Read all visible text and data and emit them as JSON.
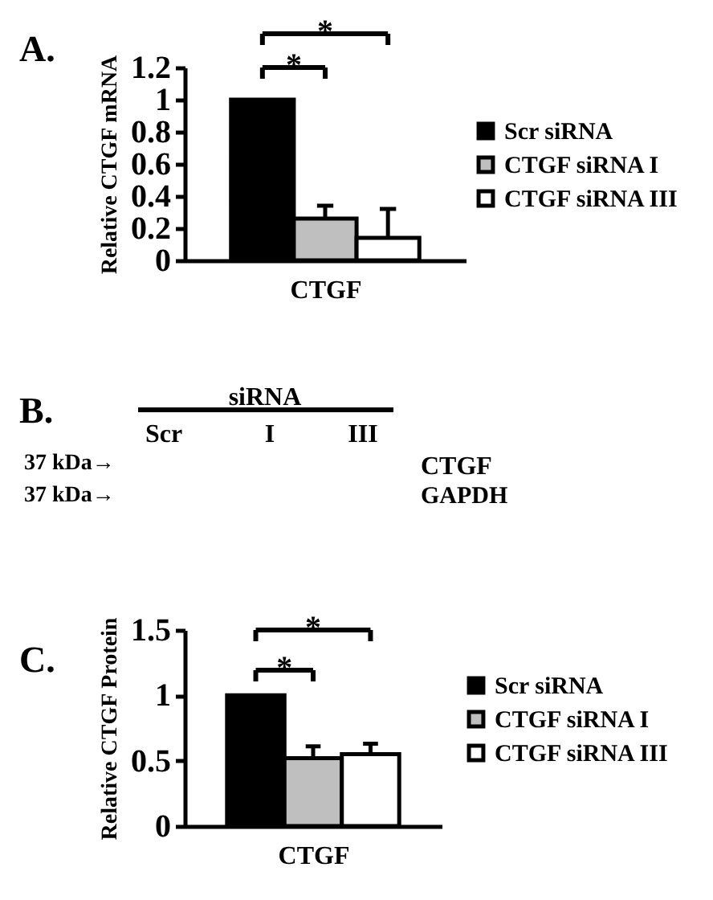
{
  "chart_data": [
    {
      "type": "bar",
      "title": "A.",
      "ylabel": "Relative CTGF mRNA",
      "categories": [
        "CTGF"
      ],
      "series": [
        {
          "name": "Scr siRNA",
          "color": "#000000",
          "values": [
            1
          ]
        },
        {
          "name": "CTGF siRNA I",
          "color": "#bfbfbf",
          "values": [
            0.26
          ],
          "errors": [
            [
              0.26,
              0.34
            ]
          ]
        },
        {
          "name": "CTGF siRNA III",
          "color": "#ffffff",
          "values": [
            0.14
          ],
          "errors": [
            [
              0.14,
              0.32
            ]
          ]
        }
      ],
      "ylim": [
        0,
        1.2
      ],
      "yticks": [
        0,
        0.2,
        0.4,
        0.6,
        0.8,
        1,
        1.2
      ],
      "legend": "right",
      "annotations": [
        "*",
        "*"
      ]
    },
    {
      "type": "other",
      "title": "B.",
      "annotations": [
        "siRNA",
        "Scr",
        "I",
        "III",
        "37 kDa→",
        "CTGF",
        "37 kDa→",
        "GAPDH"
      ]
    },
    {
      "type": "bar",
      "title": "C.",
      "ylabel": "Relative CTGF Protein",
      "categories": [
        "CTGF"
      ],
      "series": [
        {
          "name": "Scr siRNA",
          "color": "#000000",
          "values": [
            1
          ]
        },
        {
          "name": "CTGF siRNA I",
          "color": "#bfbfbf",
          "values": [
            0.52
          ],
          "errors": [
            [
              0.52,
              0.61
            ]
          ]
        },
        {
          "name": "CTGF siRNA III",
          "color": "#ffffff",
          "values": [
            0.55
          ],
          "errors": [
            [
              0.55,
              0.63
            ]
          ]
        }
      ],
      "ylim": [
        0,
        1.5
      ],
      "yticks": [
        0,
        0.5,
        1,
        1.5
      ],
      "legend": "right",
      "annotations": [
        "*",
        "*"
      ]
    }
  ]
}
